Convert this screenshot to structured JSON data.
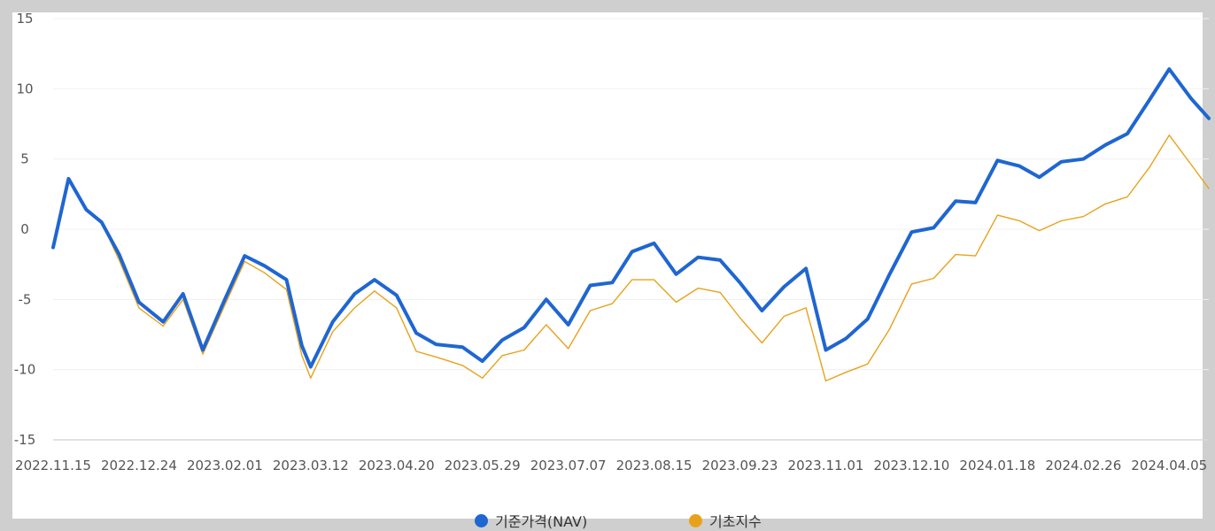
{
  "chart_data": {
    "type": "line",
    "title": "",
    "xlabel": "",
    "ylabel": "",
    "ylim": [
      -15,
      15
    ],
    "yticks": [
      15,
      10,
      5,
      0,
      -5,
      -10,
      -15
    ],
    "grid": true,
    "legend_position": "bottom-center",
    "x_dates": [
      "2022-11-15",
      "2022-11-22",
      "2022-11-30",
      "2022-12-07",
      "2022-12-15",
      "2022-12-24",
      "2023-01-04",
      "2023-01-13",
      "2023-01-22",
      "2023-02-01",
      "2023-02-10",
      "2023-02-19",
      "2023-03-01",
      "2023-03-08",
      "2023-03-12",
      "2023-03-22",
      "2023-04-01",
      "2023-04-10",
      "2023-04-20",
      "2023-04-29",
      "2023-05-08",
      "2023-05-20",
      "2023-05-29",
      "2023-06-07",
      "2023-06-17",
      "2023-06-27",
      "2023-07-07",
      "2023-07-17",
      "2023-07-27",
      "2023-08-05",
      "2023-08-15",
      "2023-08-25",
      "2023-09-04",
      "2023-09-14",
      "2023-09-23",
      "2023-10-03",
      "2023-10-13",
      "2023-10-23",
      "2023-11-01",
      "2023-11-10",
      "2023-11-20",
      "2023-11-30",
      "2023-12-10",
      "2023-12-20",
      "2023-12-30",
      "2024-01-08",
      "2024-01-18",
      "2024-01-28",
      "2024-02-06",
      "2024-02-16",
      "2024-02-26",
      "2024-03-07",
      "2024-03-17",
      "2024-03-27",
      "2024-04-05",
      "2024-04-15",
      "2024-04-23"
    ],
    "x_tick_labels": [
      "2022.11.15",
      "2022.12.24",
      "2023.02.01",
      "2023.03.12",
      "2023.04.20",
      "2023.05.29",
      "2023.07.07",
      "2023.08.15",
      "2023.09.23",
      "2023.11.01",
      "2023.12.10",
      "2024.01.18",
      "2024.02.26",
      "2024.04.05"
    ],
    "series": [
      {
        "name": "기준가격(NAV)",
        "color": "#1f66d1",
        "values": [
          -1.3,
          3.6,
          1.4,
          0.5,
          -1.8,
          -5.2,
          -6.6,
          -4.6,
          -8.6,
          -5.0,
          -1.9,
          -2.6,
          -3.6,
          -8.3,
          -9.8,
          -6.6,
          -4.6,
          -3.6,
          -4.7,
          -7.4,
          -8.2,
          -8.4,
          -9.4,
          -7.9,
          -7.0,
          -5.0,
          -6.8,
          -4.0,
          -3.8,
          -1.6,
          -1.0,
          -3.2,
          -2.0,
          -2.2,
          -3.8,
          -5.8,
          -4.1,
          -2.8,
          -8.6,
          -7.8,
          -6.4,
          -3.2,
          -0.2,
          0.1,
          2.0,
          1.9,
          4.9,
          4.5,
          3.7,
          4.8,
          5.0,
          6.0,
          6.8,
          9.2,
          11.4,
          9.3,
          7.9
        ]
      },
      {
        "name": "기초지수",
        "color": "#e8a21a",
        "values": [
          -1.3,
          3.6,
          1.4,
          0.5,
          -2.2,
          -5.6,
          -6.9,
          -5.0,
          -8.9,
          -5.4,
          -2.3,
          -3.1,
          -4.3,
          -9.0,
          -10.6,
          -7.3,
          -5.6,
          -4.4,
          -5.6,
          -8.7,
          -9.1,
          -9.7,
          -10.6,
          -9.0,
          -8.6,
          -6.8,
          -8.5,
          -5.8,
          -5.3,
          -3.6,
          -3.6,
          -5.2,
          -4.2,
          -4.5,
          -6.3,
          -8.1,
          -6.2,
          -5.6,
          -10.8,
          -10.2,
          -9.6,
          -7.1,
          -3.9,
          -3.5,
          -1.8,
          -1.9,
          1.0,
          0.6,
          -0.1,
          0.6,
          0.9,
          1.8,
          2.3,
          4.4,
          6.7,
          4.6,
          2.9
        ]
      }
    ]
  }
}
